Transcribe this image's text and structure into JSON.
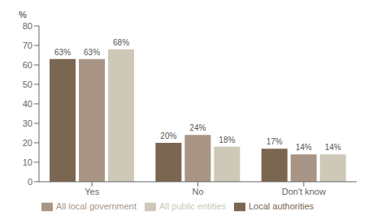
{
  "chart_data": {
    "type": "bar",
    "ylabel": "%",
    "categories": [
      "Yes",
      "No",
      "Don't know"
    ],
    "series": [
      {
        "name": "Local authorities",
        "color": "#7B6651",
        "values": [
          63,
          20,
          17
        ],
        "value_labels": [
          "63%",
          "20%",
          "17%"
        ]
      },
      {
        "name": "All local government",
        "color": "#A89585",
        "values": [
          63,
          24,
          14
        ],
        "value_labels": [
          "63%",
          "24%",
          "14%"
        ]
      },
      {
        "name": "All public entities",
        "color": "#CEC8B8",
        "values": [
          68,
          18,
          14
        ],
        "value_labels": [
          "68%",
          "18%",
          "14%"
        ]
      }
    ],
    "ylim": [
      0,
      80
    ],
    "yticks": [
      0,
      10,
      20,
      30,
      40,
      50,
      60,
      70,
      80
    ],
    "grid": false,
    "legend": "bottom",
    "data_labels": true
  }
}
